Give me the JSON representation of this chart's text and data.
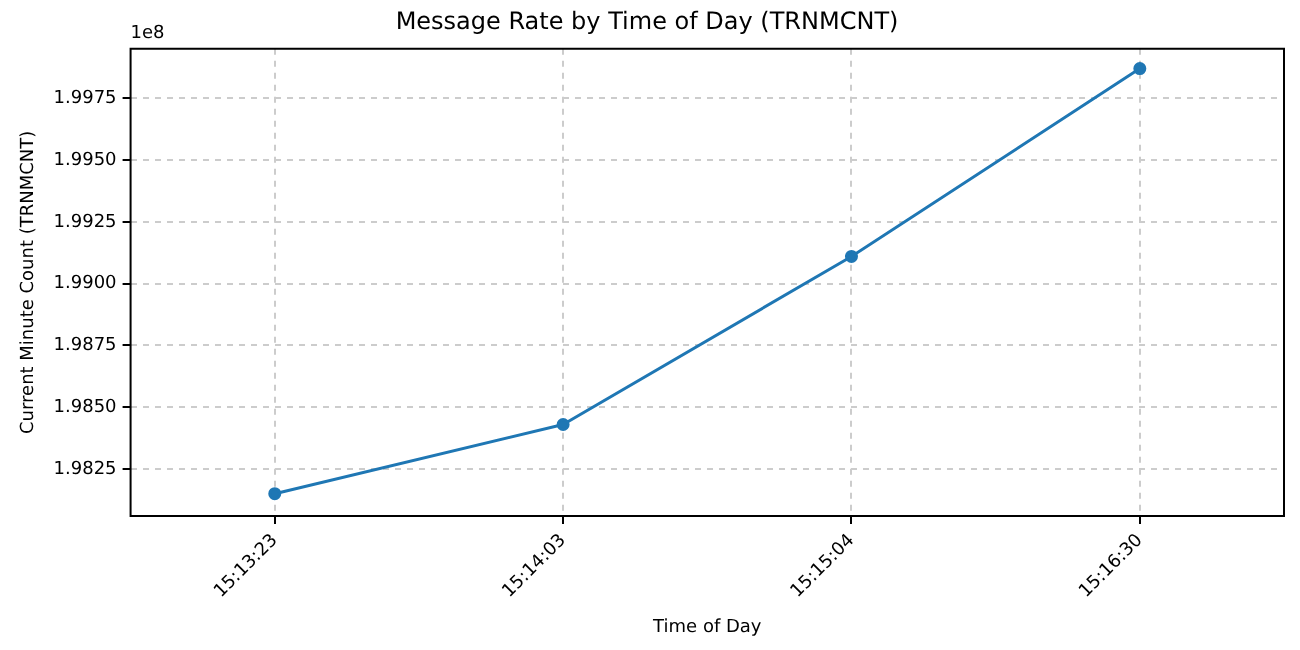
{
  "chart_data": {
    "type": "line",
    "title": "Message Rate by Time of Day (TRNMCNT)",
    "xlabel": "Time of Day",
    "ylabel": "Current Minute Count (TRNMCNT)",
    "categories": [
      "15:13:23",
      "15:14:03",
      "15:15:04",
      "15:16:30"
    ],
    "series": [
      {
        "color": "#1f77b4",
        "values": [
          1.9815,
          1.9843,
          1.9911,
          1.9987
        ]
      }
    ],
    "ylim": [
      1.9806,
      1.9995
    ],
    "yticks": [
      1.9825,
      {
        "value": 1.985,
        "label": "1.9850"
      },
      1.9875,
      {
        "value": 1.99,
        "label": "1.9900"
      },
      1.9925,
      {
        "value": 1.995,
        "label": "1.9950"
      },
      1.9975
    ],
    "annotations": [
      "1e8"
    ],
    "grid": true,
    "marker": "circle",
    "line_style": "solid"
  }
}
